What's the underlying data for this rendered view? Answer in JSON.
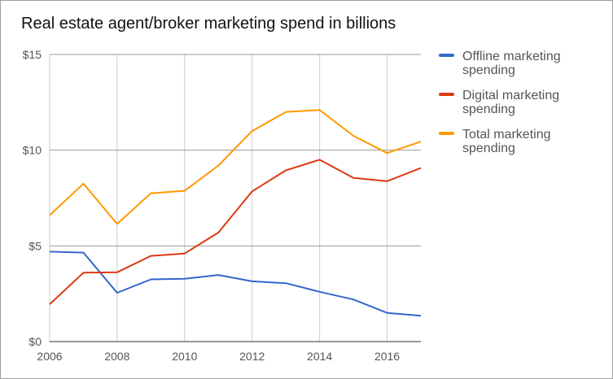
{
  "chart_data": {
    "type": "line",
    "title": "Real estate agent/broker marketing spend in billions",
    "x": [
      2006,
      2007,
      2008,
      2009,
      2010,
      2011,
      2012,
      2013,
      2014,
      2015,
      2016,
      2017
    ],
    "xlim": [
      2006,
      2017
    ],
    "ylim": [
      0,
      15
    ],
    "x_ticks": [
      {
        "value": 2006,
        "label": "2006"
      },
      {
        "value": 2008,
        "label": "2008"
      },
      {
        "value": 2010,
        "label": "2010"
      },
      {
        "value": 2012,
        "label": "2012"
      },
      {
        "value": 2014,
        "label": "2014"
      },
      {
        "value": 2016,
        "label": "2016"
      }
    ],
    "y_ticks": [
      {
        "value": 0,
        "label": "$0"
      },
      {
        "value": 5,
        "label": "$5"
      },
      {
        "value": 10,
        "label": "$10"
      },
      {
        "value": 15,
        "label": "$15"
      }
    ],
    "grid": true,
    "legend_position": "right",
    "series": [
      {
        "name": "Offline marketing spending",
        "legend_lines": [
          "Offline marketing",
          "spending"
        ],
        "color": "#3366cc",
        "values": [
          4.7,
          4.65,
          2.55,
          3.25,
          3.28,
          3.48,
          3.15,
          3.05,
          2.6,
          2.2,
          1.5,
          1.35
        ]
      },
      {
        "name": "Digital marketing spending",
        "legend_lines": [
          "Digital marketing",
          "spending"
        ],
        "color": "#dc3912",
        "values": [
          1.95,
          3.6,
          3.62,
          4.48,
          4.6,
          5.7,
          7.85,
          8.95,
          9.5,
          8.55,
          8.38,
          9.07
        ]
      },
      {
        "name": "Total marketing spending",
        "legend_lines": [
          "Total marketing",
          "spending"
        ],
        "color": "#ff9900",
        "values": [
          6.6,
          8.25,
          6.15,
          7.75,
          7.88,
          9.2,
          11.0,
          12.0,
          12.1,
          10.75,
          9.85,
          10.45
        ]
      }
    ]
  }
}
